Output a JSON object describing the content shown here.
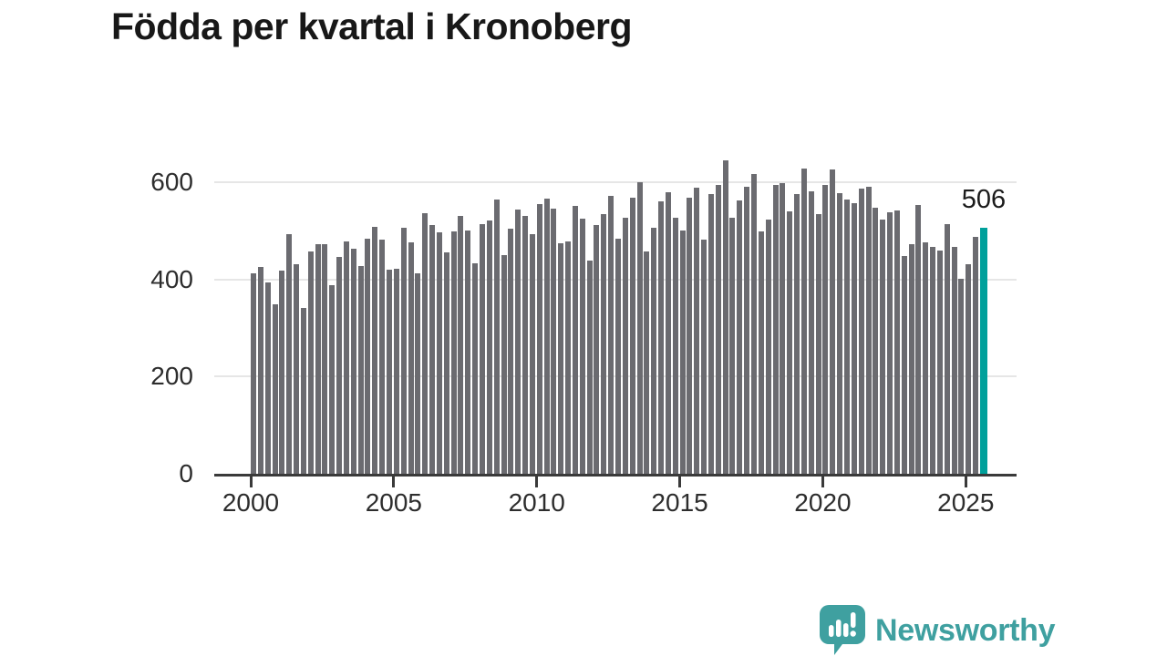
{
  "title": "Födda per kvartal i Kronoberg",
  "branding": {
    "name": "Newsworthy"
  },
  "colors": {
    "bar": "#6b6b70",
    "highlight": "#00a09b",
    "grid": "#e6e6e6",
    "axis": "#3a3a3a",
    "tick_label": "#2d2d2d",
    "title": "#181818",
    "annotation": "#1b1b1b",
    "brand": "#3fa0a0"
  },
  "chart_data": {
    "type": "bar",
    "title": "Födda per kvartal i Kronoberg",
    "xlabel": "",
    "ylabel": "",
    "x_start": "2000 Q1",
    "x_end": "2025 Q3",
    "x_tick_labels": [
      "2000",
      "2005",
      "2010",
      "2015",
      "2020",
      "2025"
    ],
    "y_ticks": [
      0,
      200,
      400,
      600
    ],
    "ylim": [
      0,
      660
    ],
    "grid": "horizontal",
    "highlight_index": 102,
    "highlight_label": "506",
    "values": [
      412,
      426,
      394,
      349,
      418,
      494,
      432,
      341,
      458,
      472,
      472,
      388,
      447,
      478,
      464,
      428,
      484,
      508,
      482,
      420,
      422,
      506,
      476,
      412,
      536,
      511,
      497,
      455,
      499,
      530,
      501,
      434,
      514,
      522,
      564,
      450,
      505,
      544,
      530,
      494,
      555,
      566,
      546,
      475,
      478,
      552,
      525,
      439,
      511,
      534,
      572,
      484,
      527,
      569,
      600,
      458,
      506,
      561,
      580,
      527,
      500,
      568,
      589,
      481,
      575,
      595,
      645,
      526,
      562,
      591,
      616,
      498,
      523,
      594,
      598,
      540,
      575,
      628,
      582,
      534,
      594,
      626,
      578,
      564,
      556,
      587,
      590,
      548,
      523,
      539,
      541,
      448,
      473,
      553,
      476,
      467,
      459,
      514,
      467,
      402,
      431,
      487,
      506
    ]
  }
}
